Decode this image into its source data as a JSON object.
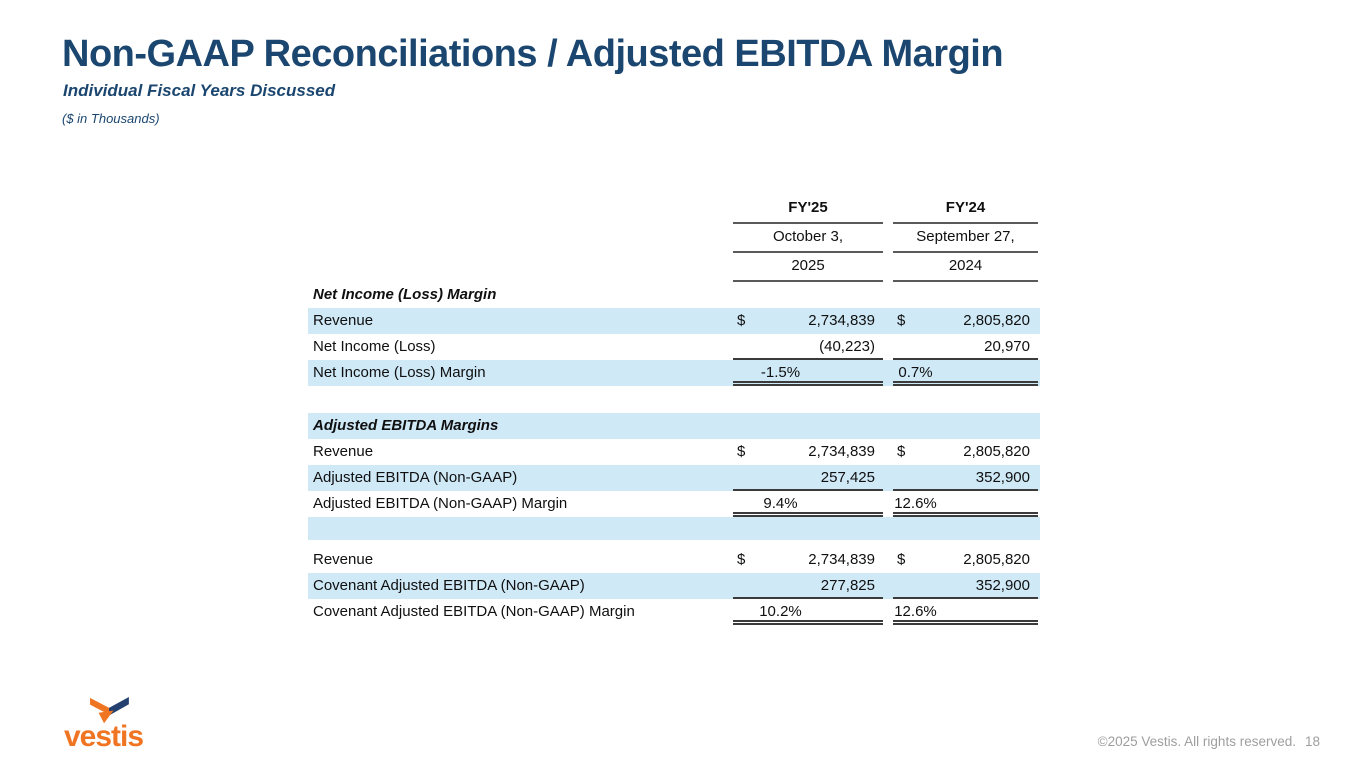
{
  "slide": {
    "title": "Non-GAAP Reconciliations / Adjusted EBITDA Margin",
    "subtitle": "Individual Fiscal Years Discussed",
    "units_note": "($ in Thousands)"
  },
  "table": {
    "columns": {
      "fy25": {
        "header": "FY'25",
        "date_line1": "October 3,",
        "date_line2": "2025"
      },
      "fy24": {
        "header": "FY'24",
        "date_line1": "September 27,",
        "date_line2": "2024"
      }
    },
    "rows": [
      {
        "type": "section",
        "label": "Net Income (Loss) Margin",
        "bg": "white"
      },
      {
        "type": "data",
        "label": "Revenue",
        "bg": "blue",
        "fy25": {
          "currency": "$",
          "value": "2,734,839"
        },
        "fy24": {
          "currency": "$",
          "value": "2,805,820"
        }
      },
      {
        "type": "data",
        "label": "Net Income (Loss)",
        "bg": "white",
        "rule": "single",
        "fy25": {
          "value": "(40,223)"
        },
        "fy24": {
          "value": "20,970"
        }
      },
      {
        "type": "data",
        "label": "Net Income (Loss) Margin",
        "bg": "blue",
        "rule": "double",
        "align": "center",
        "fy25": {
          "value": "-1.5%"
        },
        "fy24": {
          "value": "0.7%"
        }
      },
      {
        "type": "spacer",
        "bg": "white",
        "height": 27
      },
      {
        "type": "section",
        "label": "Adjusted EBITDA Margins",
        "bg": "blue"
      },
      {
        "type": "data",
        "label": "Revenue",
        "bg": "white",
        "fy25": {
          "currency": "$",
          "value": "2,734,839"
        },
        "fy24": {
          "currency": "$",
          "value": "2,805,820"
        }
      },
      {
        "type": "data",
        "label": "Adjusted EBITDA (Non-GAAP)",
        "bg": "blue",
        "rule": "single",
        "fy25": {
          "value": "257,425"
        },
        "fy24": {
          "value": "352,900"
        }
      },
      {
        "type": "data",
        "label": "Adjusted EBITDA (Non-GAAP) Margin",
        "bg": "white",
        "rule": "double",
        "align": "center",
        "fy25": {
          "value": "9.4%"
        },
        "fy24": {
          "value": "12.6%"
        }
      },
      {
        "type": "spacer",
        "bg": "blue",
        "height": 23
      },
      {
        "type": "spacer",
        "bg": "white",
        "height": 7
      },
      {
        "type": "data",
        "label": "Revenue",
        "bg": "white",
        "fy25": {
          "currency": "$",
          "value": "2,734,839"
        },
        "fy24": {
          "currency": "$",
          "value": "2,805,820"
        }
      },
      {
        "type": "data",
        "label": "Covenant Adjusted EBITDA (Non-GAAP)",
        "bg": "blue",
        "rule": "single",
        "fy25": {
          "value": "277,825"
        },
        "fy24": {
          "value": "352,900"
        }
      },
      {
        "type": "data",
        "label": "Covenant Adjusted EBITDA (Non-GAAP) Margin",
        "bg": "white",
        "rule": "double",
        "align": "center",
        "fy25": {
          "value": "10.2%"
        },
        "fy24": {
          "value": "12.6%"
        }
      }
    ]
  },
  "footer": {
    "logo_text": "vestis",
    "copyright": "©2025 Vestis. All rights reserved.",
    "page_number": "18"
  },
  "colors": {
    "title_navy": "#1a466f",
    "row_blue": "#cfe9f7",
    "logo_orange": "#f07522",
    "logo_navy": "#24406e",
    "footer_gray": "#9e9e9e",
    "rule_dark": "#3b3b3b",
    "header_rule_gray": "#5a5a5a"
  }
}
